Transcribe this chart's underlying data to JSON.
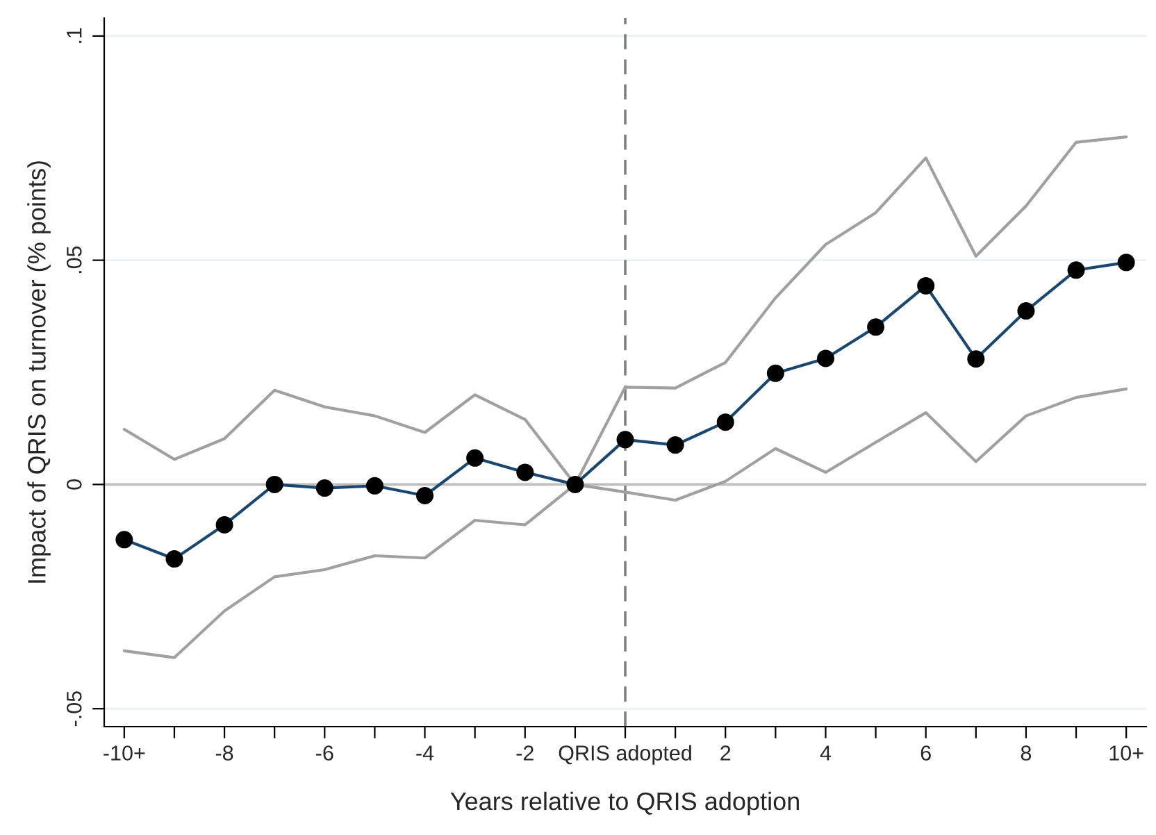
{
  "chart_data": {
    "type": "line",
    "xlabel": "Years relative to QRIS adoption",
    "ylabel": "Impact of QRIS on turnover (% points)",
    "x": [
      -10,
      -9,
      -8,
      -7,
      -6,
      -5,
      -4,
      -3,
      -2,
      -1,
      0,
      1,
      2,
      3,
      4,
      5,
      6,
      7,
      8,
      9,
      10
    ],
    "series": [
      {
        "color": "#a0a0a0",
        "marker": "none",
        "values": [
          0.0123,
          0.0056,
          0.0102,
          0.021,
          0.0173,
          0.0153,
          0.0116,
          0.02,
          0.0145,
          0,
          0.0217,
          0.0215,
          0.0272,
          0.0416,
          0.0535,
          0.0606,
          0.0728,
          0.0509,
          0.0621,
          0.0763,
          0.0775
        ]
      },
      {
        "color": "#a0a0a0",
        "marker": "none",
        "values": [
          -0.0371,
          -0.0386,
          -0.0282,
          -0.0206,
          -0.019,
          -0.0159,
          -0.0164,
          -0.008,
          -0.009,
          0,
          -0.0017,
          -0.0035,
          0.0007,
          0.008,
          0.0027,
          0.0094,
          0.016,
          0.0051,
          0.0153,
          0.0194,
          0.0213
        ]
      },
      {
        "color": "#1a476f",
        "marker": "circle",
        "values": [
          -0.0123,
          -0.0166,
          -0.009,
          0,
          -0.0008,
          -0.0003,
          -0.0025,
          0.0059,
          0.0027,
          0,
          0.01,
          0.0088,
          0.0139,
          0.0248,
          0.0281,
          0.0351,
          0.0443,
          0.028,
          0.0387,
          0.0478,
          0.0495
        ]
      }
    ],
    "xlim": [
      -10.4,
      10.4
    ],
    "ylim": [
      -0.054,
      0.104
    ],
    "xticks": [
      {
        "value": -10,
        "label": "-10+"
      },
      {
        "value": -9,
        "label": null
      },
      {
        "value": -8,
        "label": "-8"
      },
      {
        "value": -7,
        "label": null
      },
      {
        "value": -6,
        "label": "-6"
      },
      {
        "value": -5,
        "label": null
      },
      {
        "value": -4,
        "label": "-4"
      },
      {
        "value": -3,
        "label": null
      },
      {
        "value": -2,
        "label": "-2"
      },
      {
        "value": -1,
        "label": null
      },
      {
        "value": 0,
        "label": "QRIS adopted"
      },
      {
        "value": 1,
        "label": null
      },
      {
        "value": 2,
        "label": "2"
      },
      {
        "value": 3,
        "label": null
      },
      {
        "value": 4,
        "label": "4"
      },
      {
        "value": 5,
        "label": null
      },
      {
        "value": 6,
        "label": "6"
      },
      {
        "value": 7,
        "label": null
      },
      {
        "value": 8,
        "label": "8"
      },
      {
        "value": 9,
        "label": null
      },
      {
        "value": 10,
        "label": "10+"
      }
    ],
    "yticks": [
      {
        "value": -0.05,
        "label": "-.05"
      },
      {
        "value": 0,
        "label": "0"
      },
      {
        "value": 0.05,
        "label": ".05"
      },
      {
        "value": 0.1,
        "label": ".1"
      }
    ],
    "ref_lines": [
      {
        "axis": "x",
        "value": 0,
        "color": "#7f7f7f",
        "line_style": "dashed"
      },
      {
        "axis": "y",
        "value": 0,
        "color": "#bdbdbd",
        "line_style": "solid"
      }
    ],
    "grid": "y",
    "legend": false
  }
}
